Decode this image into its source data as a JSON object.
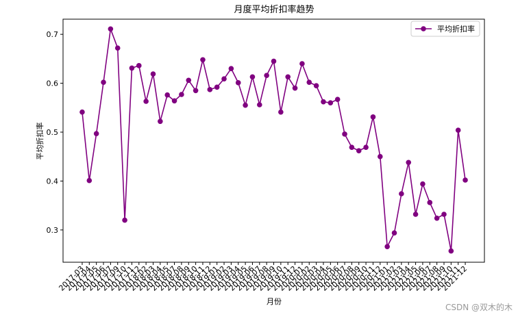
{
  "chart_data": {
    "type": "line",
    "title": "月度平均折扣率趋势",
    "x_label": "月份",
    "y_label": "平均折扣率",
    "categories": [
      "2017-03",
      "2017-04",
      "2017-05",
      "2017-06",
      "2017-07",
      "2017-09",
      "2017-10",
      "2017-11",
      "2017-12",
      "2018-02",
      "2018-03",
      "2018-04",
      "2018-05",
      "2018-07",
      "2018-08",
      "2018-09",
      "2018-10",
      "2018-11",
      "2018-12",
      "2019-01",
      "2019-02",
      "2019-03",
      "2019-04",
      "2019-05",
      "2019-06",
      "2019-07",
      "2019-08",
      "2019-09",
      "2019-10",
      "2019-11",
      "2019-12",
      "2020-01",
      "2020-02",
      "2020-03",
      "2020-04",
      "2020-05",
      "2020-06",
      "2020-07",
      "2020-08",
      "2020-09",
      "2020-10",
      "2020-11",
      "2020-12",
      "2021-01",
      "2021-02",
      "2021-03",
      "2021-04",
      "2021-05",
      "2021-06",
      "2021-07",
      "2021-08",
      "2021-09",
      "2021-10",
      "2021-11",
      "2021-12"
    ],
    "series": [
      {
        "name": "平均折扣率",
        "color": "#800080",
        "values": [
          0.541,
          0.401,
          0.497,
          0.602,
          0.711,
          0.672,
          0.32,
          0.631,
          0.636,
          0.563,
          0.619,
          0.522,
          0.576,
          0.564,
          0.577,
          0.606,
          0.585,
          0.648,
          0.587,
          0.592,
          0.609,
          0.63,
          0.601,
          0.555,
          0.613,
          0.556,
          0.616,
          0.645,
          0.541,
          0.613,
          0.59,
          0.64,
          0.602,
          0.595,
          0.562,
          0.56,
          0.567,
          0.496,
          0.469,
          0.462,
          0.469,
          0.531,
          0.45,
          0.266,
          0.294,
          0.374,
          0.438,
          0.332,
          0.394,
          0.356,
          0.324,
          0.332,
          0.257,
          0.504,
          0.402
        ]
      }
    ],
    "ylim": [
      0.234,
      0.731
    ],
    "yticks": [
      0.3,
      0.4,
      0.5,
      0.6,
      0.7
    ],
    "legend": "upper right",
    "watermark": "CSDN @双木的木"
  }
}
